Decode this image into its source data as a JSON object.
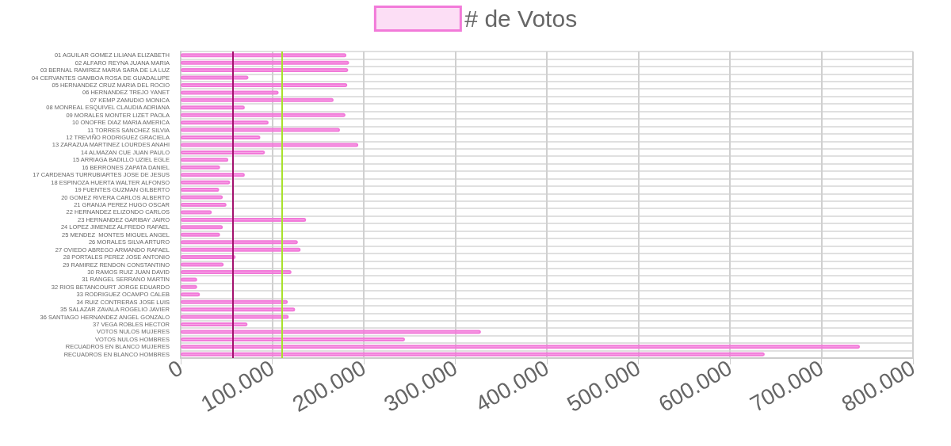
{
  "chart_data": {
    "type": "bar",
    "orientation": "horizontal",
    "categories": [
      "01 AGUILAR GOMEZ LILIANA ELIZABETH",
      "02 ALFARO REYNA JUANA MARIA",
      "03 BERNAL RAMIREZ MARIA SARA DE LA LUZ",
      "04 CERVANTES GAMBOA ROSA DE GUADALUPE",
      "05 HERNANDEZ CRUZ MARIA DEL ROCIO",
      "06 HERNANDEZ TREJO YANET",
      "07 KEMP ZAMUDIO MONICA",
      "08 MONREAL ESQUIVEL CLAUDIA ADRIANA",
      "09 MORALES MONTER LIZET PAOLA",
      "10 ONOFRE DIAZ MARIA AMERICA",
      "11 TORRES SANCHEZ SILVIA",
      "12 TREVIÑO RODRIGUEZ GRACIELA",
      "13 ZARAZUA MARTINEZ LOURDES ANAHI",
      "14 ALMAZAN CUE JUAN PAULO",
      "15 ARRIAGA BADILLO UZIEL EGLE",
      "16 BERRONES ZAPATA DANIEL",
      "17 CARDENAS TURRUBIARTES JOSE DE JESUS",
      "18 ESPINOZA HUERTA WALTER ALFONSO",
      "19 FUENTES GUZMAN GILBERTO",
      "20 GOMEZ RIVERA CARLOS ALBERTO",
      "21 GRANJA PEREZ HUGO OSCAR",
      "22 HERNANDEZ ELIZONDO CARLOS",
      "23 HERNANDEZ GARIBAY JAIRO",
      "24 LOPEZ JIMENEZ ALFREDO RAFAEL",
      "25 MENDEZ  MONTES MIGUEL ANGEL",
      "26 MORALES SILVA ARTURO",
      "27 OVIEDO ABREGO ARMANDO RAFAEL",
      "28 PORTALES PEREZ JOSE ANTONIO",
      "29 RAMIREZ RENDON CONSTANTINO",
      "30 RAMOS RUIZ JUAN DAVID",
      "31 RANGEL SERRANO MARTIN",
      "32 RIOS BETANCOURT JORGE EDUARDO",
      "33 RODRIGUEZ OCAMPO CALEB",
      "34 RUIZ CONTRERAS JOSE LUIS",
      "35 SALAZAR ZAVALA ROGELIO JAVIER",
      "36 SANTIAGO HERNANDEZ ANGEL GONZALO",
      "37 VEGA ROBLES HECTOR",
      "VOTOS NULOS MUJERES",
      "VOTOS NULOS HOMBRES",
      "RECUADROS EN BLANCO MUJERES",
      "RECUADROS EN BLANCO HOMBRES"
    ],
    "series": [
      {
        "name": "# de Votos",
        "color": "#f27ad9",
        "values": [
          181000,
          184000,
          183000,
          74000,
          182000,
          107000,
          167000,
          70000,
          180000,
          96000,
          174000,
          87000,
          194000,
          92000,
          52000,
          43000,
          70000,
          54000,
          42000,
          46000,
          50000,
          34000,
          137000,
          46000,
          43000,
          128000,
          131000,
          60000,
          47000,
          121000,
          18000,
          18000,
          21000,
          117000,
          125000,
          118000,
          73000,
          328000,
          245000,
          742000,
          638000
        ]
      }
    ],
    "xlim": [
      0,
      800000
    ],
    "xticks": [
      0,
      {
        "value": 100000,
        "label": "100.000"
      },
      {
        "value": 200000,
        "label": "200.000"
      },
      {
        "value": 300000,
        "label": "300.000"
      },
      {
        "value": 400000,
        "label": "400.000"
      },
      {
        "value": 500000,
        "label": "500.000"
      },
      {
        "value": 600000,
        "label": "600.000"
      },
      {
        "value": 700000,
        "label": "700.000"
      },
      {
        "value": 800000,
        "label": "800.000"
      }
    ],
    "ref_lines": [
      {
        "axis": "x",
        "value": 57000,
        "color": "#a3126e"
      },
      {
        "axis": "x",
        "value": 111000,
        "color": "#a8e22c"
      }
    ],
    "grid": true,
    "legend": "top"
  }
}
